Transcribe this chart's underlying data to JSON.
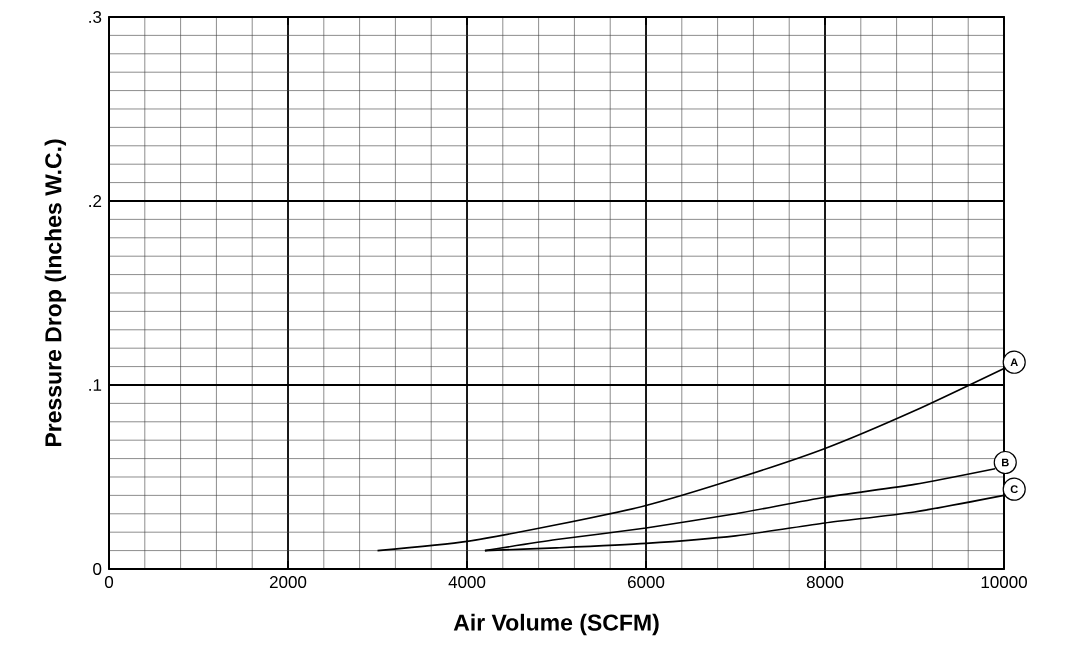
{
  "chart_data": {
    "type": "line",
    "xlabel": "Air Volume (SCFM)",
    "ylabel": "Pressure Drop (Inches W.C.)",
    "xlim": [
      0,
      10000
    ],
    "ylim": [
      0,
      0.3
    ],
    "xticks": [
      0,
      2000,
      4000,
      6000,
      8000,
      10000
    ],
    "yticks": [
      {
        "value": 0,
        "label": "0"
      },
      {
        "value": 0.1,
        "label": ".1"
      },
      {
        "value": 0.2,
        "label": ".2"
      },
      {
        "value": 0.3,
        "label": ".3"
      }
    ],
    "grid": true,
    "legend": "right",
    "marker": "none",
    "line_style": "solid",
    "series": [
      {
        "name": "A",
        "color": "#000000",
        "x": [
          3000,
          4000,
          5000,
          6000,
          7000,
          8000,
          9000,
          10000
        ],
        "values": [
          0.01,
          0.015,
          0.024,
          0.0345,
          0.049,
          0.0655,
          0.086,
          0.109
        ]
      },
      {
        "name": "B",
        "color": "#000000",
        "x": [
          4200,
          5000,
          6000,
          7000,
          8000,
          9000,
          9900
        ],
        "values": [
          0.01,
          0.016,
          0.0223,
          0.03,
          0.039,
          0.046,
          0.0545
        ]
      },
      {
        "name": "C",
        "color": "#000000",
        "x": [
          4200,
          5000,
          6000,
          7000,
          8000,
          9000,
          10000
        ],
        "values": [
          0.01,
          0.0115,
          0.0139,
          0.018,
          0.025,
          0.031,
          0.04
        ]
      }
    ]
  }
}
